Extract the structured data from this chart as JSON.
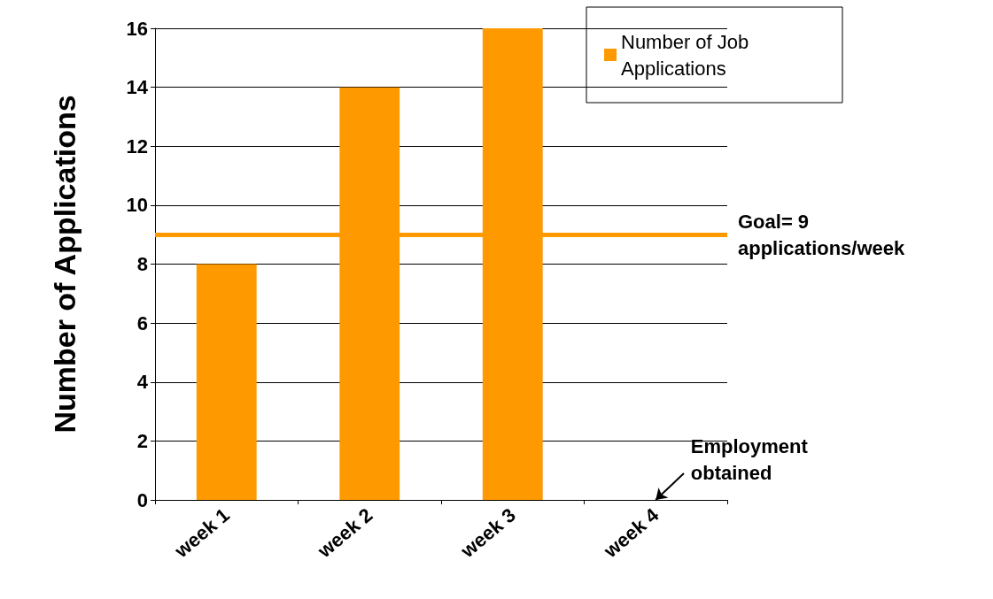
{
  "chart_data": {
    "type": "bar",
    "ylabel": "Number of Applications",
    "categories": [
      "week 1",
      "week 2",
      "week 3",
      "week 4"
    ],
    "series": [
      {
        "name": "Number of Job Applications",
        "color": "#ff9900",
        "values": [
          8,
          14,
          16,
          0
        ]
      }
    ],
    "ylim": [
      0,
      16
    ],
    "yticks": [
      0,
      2,
      4,
      6,
      8,
      10,
      12,
      14,
      16
    ],
    "grid": "y",
    "legend": "top right",
    "ref_lines": [
      {
        "axis": "y",
        "value": 9,
        "label": "Goal= 9 applications/week",
        "color": "#ff9900"
      }
    ],
    "annotations": [
      {
        "text": "Employment obtained",
        "x": "week 4",
        "y": 0
      }
    ]
  }
}
